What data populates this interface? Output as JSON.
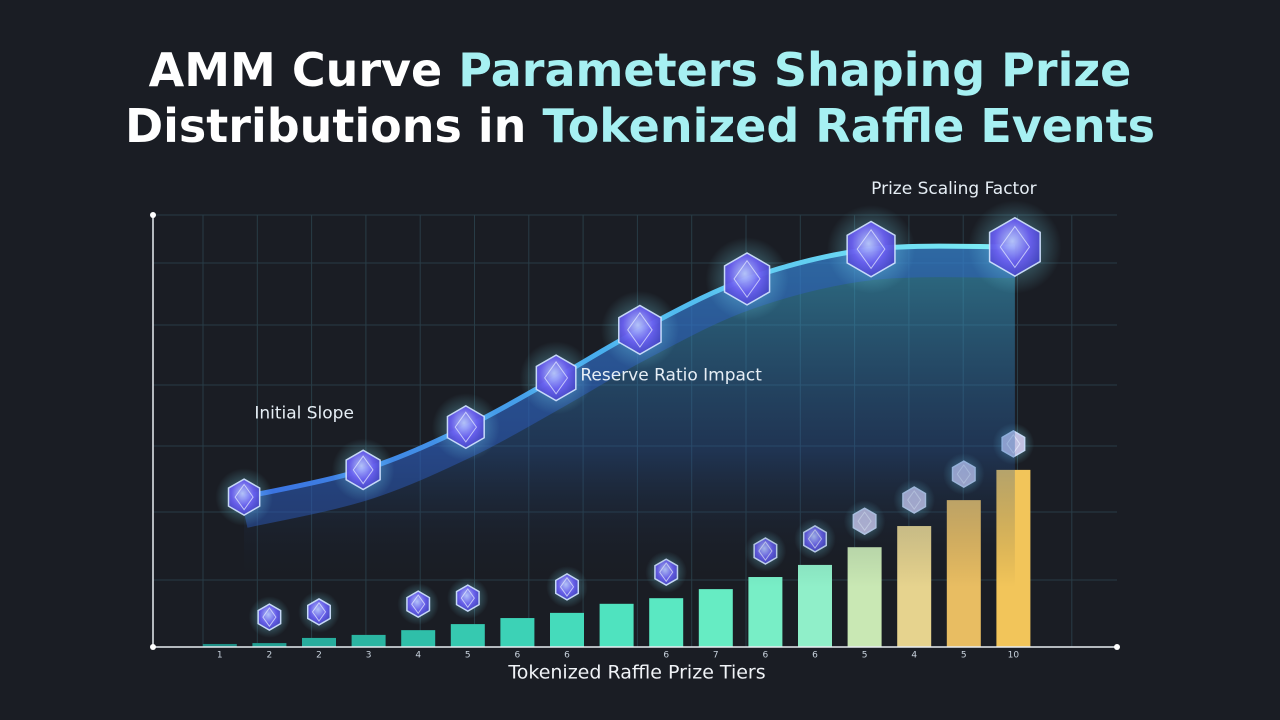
{
  "title_lines": [
    [
      {
        "text": "AMM Curve ",
        "color": "#ffffff"
      },
      {
        "text": "Parameters Shaping Prize",
        "color": "#a6f0f2"
      }
    ],
    [
      {
        "text": "Distributions in ",
        "color": "#ffffff"
      },
      {
        "text": "Tokenized Raffle Events",
        "color": "#a6f0f2"
      }
    ]
  ],
  "chart_data": [
    {
      "type": "bar",
      "xlabel": "Tokenized Raffle Prize Tiers",
      "categories": [
        "1",
        "2",
        "2",
        "3",
        "4",
        "5",
        "6",
        "6",
        null,
        "6",
        "7",
        "6",
        "6",
        "5",
        "4",
        "5",
        "10"
      ],
      "values": [
        0.7,
        0.9,
        2.1,
        2.8,
        3.9,
        5.3,
        6.7,
        7.9,
        10,
        11.3,
        13.4,
        16.2,
        19,
        23.1,
        28,
        34,
        41
      ],
      "colors": [
        "#1f8f86",
        "#23a093",
        "#28ad9d",
        "#2bb5a2",
        "#2fbfa9",
        "#36c9b0",
        "#3cd2b6",
        "#45dbbb",
        "#4fe3bf",
        "#5ae8c2",
        "#66ecc3",
        "#78eec6",
        "#90efc9",
        "#c9e8b4",
        "#e6d38e",
        "#e8bd62",
        "#f2c55a"
      ],
      "ylim": [
        0,
        100
      ]
    },
    {
      "type": "line",
      "color": "#5fe6f5",
      "x": [
        0.99,
        3.39,
        5.46,
        7.28,
        8.97,
        11.13,
        13.63,
        16.53
      ],
      "values": [
        34.7,
        41,
        50.9,
        62.3,
        73.4,
        85.2,
        92.1,
        92.6
      ],
      "xlim": [
        0,
        17
      ],
      "ylim": [
        0,
        100
      ],
      "annotations": [
        {
          "text": "Initial Slope",
          "x": 2.2,
          "y": 54
        },
        {
          "text": "Reserve Ratio Impact",
          "x": 9.6,
          "y": 62.8
        },
        {
          "text": "Prize Scaling Factor",
          "x": 15.3,
          "y": 106
        }
      ]
    }
  ]
}
